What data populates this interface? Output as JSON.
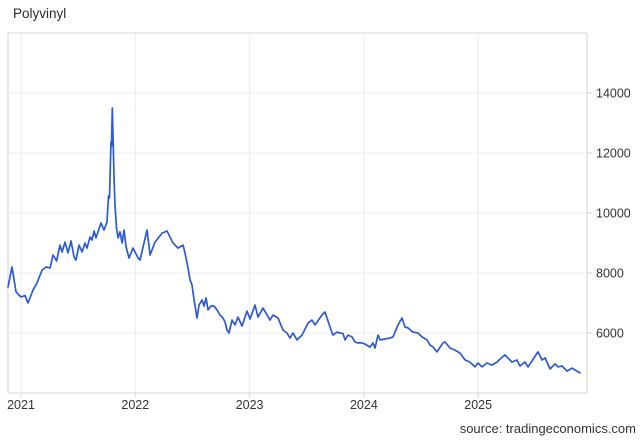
{
  "header": {
    "title": "Polyvinyl"
  },
  "footer": {
    "source": "source: tradingeconomics.com"
  },
  "colors": {
    "line": "#2d5ad4",
    "grid": "#ececec",
    "border": "#d6d6d6",
    "text": "#333333",
    "background": "#ffffff"
  },
  "chart_data": {
    "type": "line",
    "title": "Polyvinyl",
    "xlabel": "",
    "ylabel": "",
    "legend": "none",
    "grid": true,
    "x_ticks": [
      2021,
      2022,
      2023,
      2024,
      2025
    ],
    "x_tick_labels": [
      "2021",
      "2022",
      "2023",
      "2024",
      "2025"
    ],
    "y_ticks": [
      6000,
      8000,
      10000,
      12000,
      14000
    ],
    "y_tick_labels": [
      "6000",
      "8000",
      "10000",
      "12000",
      "14000"
    ],
    "ylim": [
      4000,
      16000
    ],
    "xlim": [
      2020.886,
      2025.952
    ],
    "series": [
      {
        "name": "Polyvinyl",
        "points": [
          [
            2020.886,
            7530
          ],
          [
            2020.921,
            8200
          ],
          [
            2020.956,
            7370
          ],
          [
            2021.0,
            7200
          ],
          [
            2021.035,
            7250
          ],
          [
            2021.061,
            7000
          ],
          [
            2021.105,
            7430
          ],
          [
            2021.14,
            7670
          ],
          [
            2021.184,
            8100
          ],
          [
            2021.219,
            8200
          ],
          [
            2021.254,
            8170
          ],
          [
            2021.28,
            8600
          ],
          [
            2021.311,
            8400
          ],
          [
            2021.341,
            8930
          ],
          [
            2021.359,
            8700
          ],
          [
            2021.385,
            9030
          ],
          [
            2021.411,
            8670
          ],
          [
            2021.437,
            9070
          ],
          [
            2021.464,
            8530
          ],
          [
            2021.481,
            8430
          ],
          [
            2021.507,
            8930
          ],
          [
            2021.534,
            8700
          ],
          [
            2021.56,
            9000
          ],
          [
            2021.577,
            8830
          ],
          [
            2021.604,
            9200
          ],
          [
            2021.621,
            9100
          ],
          [
            2021.639,
            9400
          ],
          [
            2021.656,
            9170
          ],
          [
            2021.7,
            9670
          ],
          [
            2021.726,
            9430
          ],
          [
            2021.752,
            9700
          ],
          [
            2021.765,
            10570
          ],
          [
            2021.774,
            10500
          ],
          [
            2021.783,
            11770
          ],
          [
            2021.787,
            12370
          ],
          [
            2021.792,
            12230
          ],
          [
            2021.799,
            13500
          ],
          [
            2021.805,
            12600
          ],
          [
            2021.814,
            11100
          ],
          [
            2021.822,
            10270
          ],
          [
            2021.835,
            9500
          ],
          [
            2021.849,
            9170
          ],
          [
            2021.866,
            9370
          ],
          [
            2021.884,
            9000
          ],
          [
            2021.901,
            9430
          ],
          [
            2021.919,
            8870
          ],
          [
            2021.945,
            8500
          ],
          [
            2021.98,
            8830
          ],
          [
            2022.024,
            8500
          ],
          [
            2022.041,
            8430
          ],
          [
            2022.102,
            9430
          ],
          [
            2022.129,
            8600
          ],
          [
            2022.172,
            9030
          ],
          [
            2022.234,
            9330
          ],
          [
            2022.277,
            9400
          ],
          [
            2022.33,
            9000
          ],
          [
            2022.374,
            8830
          ],
          [
            2022.417,
            8930
          ],
          [
            2022.435,
            8670
          ],
          [
            2022.461,
            8170
          ],
          [
            2022.479,
            7770
          ],
          [
            2022.496,
            7600
          ],
          [
            2022.514,
            7100
          ],
          [
            2022.54,
            6500
          ],
          [
            2022.557,
            6930
          ],
          [
            2022.584,
            7100
          ],
          [
            2022.601,
            6900
          ],
          [
            2022.619,
            7170
          ],
          [
            2022.636,
            6770
          ],
          [
            2022.662,
            6900
          ],
          [
            2022.688,
            6900
          ],
          [
            2022.715,
            6770
          ],
          [
            2022.741,
            6600
          ],
          [
            2022.767,
            6500
          ],
          [
            2022.785,
            6370
          ],
          [
            2022.802,
            6100
          ],
          [
            2022.82,
            6000
          ],
          [
            2022.846,
            6430
          ],
          [
            2022.872,
            6270
          ],
          [
            2022.898,
            6530
          ],
          [
            2022.933,
            6230
          ],
          [
            2022.977,
            6730
          ],
          [
            2023.003,
            6470
          ],
          [
            2023.047,
            6930
          ],
          [
            2023.073,
            6530
          ],
          [
            2023.117,
            6830
          ],
          [
            2023.178,
            6430
          ],
          [
            2023.205,
            6600
          ],
          [
            2023.248,
            6500
          ],
          [
            2023.292,
            6100
          ],
          [
            2023.327,
            6000
          ],
          [
            2023.353,
            5830
          ],
          [
            2023.38,
            6000
          ],
          [
            2023.415,
            5770
          ],
          [
            2023.458,
            5930
          ],
          [
            2023.511,
            6330
          ],
          [
            2023.546,
            6430
          ],
          [
            2023.572,
            6270
          ],
          [
            2023.633,
            6600
          ],
          [
            2023.66,
            6700
          ],
          [
            2023.712,
            6100
          ],
          [
            2023.73,
            5930
          ],
          [
            2023.765,
            6030
          ],
          [
            2023.791,
            6000
          ],
          [
            2023.817,
            5980
          ],
          [
            2023.835,
            5770
          ],
          [
            2023.861,
            5930
          ],
          [
            2023.896,
            5870
          ],
          [
            2023.922,
            5700
          ],
          [
            2023.948,
            5670
          ],
          [
            2023.983,
            5670
          ],
          [
            2024.01,
            5630
          ],
          [
            2024.053,
            5530
          ],
          [
            2024.08,
            5670
          ],
          [
            2024.097,
            5500
          ],
          [
            2024.123,
            5930
          ],
          [
            2024.141,
            5770
          ],
          [
            2024.185,
            5800
          ],
          [
            2024.228,
            5830
          ],
          [
            2024.255,
            5870
          ],
          [
            2024.298,
            6270
          ],
          [
            2024.333,
            6500
          ],
          [
            2024.36,
            6200
          ],
          [
            2024.386,
            6170
          ],
          [
            2024.43,
            6030
          ],
          [
            2024.473,
            6000
          ],
          [
            2024.508,
            5870
          ],
          [
            2024.552,
            5770
          ],
          [
            2024.578,
            5600
          ],
          [
            2024.605,
            5530
          ],
          [
            2024.64,
            5370
          ],
          [
            2024.692,
            5670
          ],
          [
            2024.71,
            5700
          ],
          [
            2024.753,
            5500
          ],
          [
            2024.797,
            5430
          ],
          [
            2024.841,
            5330
          ],
          [
            2024.885,
            5100
          ],
          [
            2024.928,
            5030
          ],
          [
            2024.972,
            4870
          ],
          [
            2024.998,
            5000
          ],
          [
            2025.033,
            4870
          ],
          [
            2025.077,
            5000
          ],
          [
            2025.121,
            4930
          ],
          [
            2025.164,
            5030
          ],
          [
            2025.191,
            5130
          ],
          [
            2025.234,
            5270
          ],
          [
            2025.296,
            5030
          ],
          [
            2025.339,
            5100
          ],
          [
            2025.366,
            4900
          ],
          [
            2025.409,
            5030
          ],
          [
            2025.436,
            4870
          ],
          [
            2025.523,
            5370
          ],
          [
            2025.558,
            5100
          ],
          [
            2025.585,
            5170
          ],
          [
            2025.628,
            4800
          ],
          [
            2025.672,
            4970
          ],
          [
            2025.698,
            4870
          ],
          [
            2025.733,
            4900
          ],
          [
            2025.777,
            4730
          ],
          [
            2025.821,
            4830
          ],
          [
            2025.864,
            4730
          ],
          [
            2025.891,
            4670
          ]
        ]
      }
    ]
  }
}
